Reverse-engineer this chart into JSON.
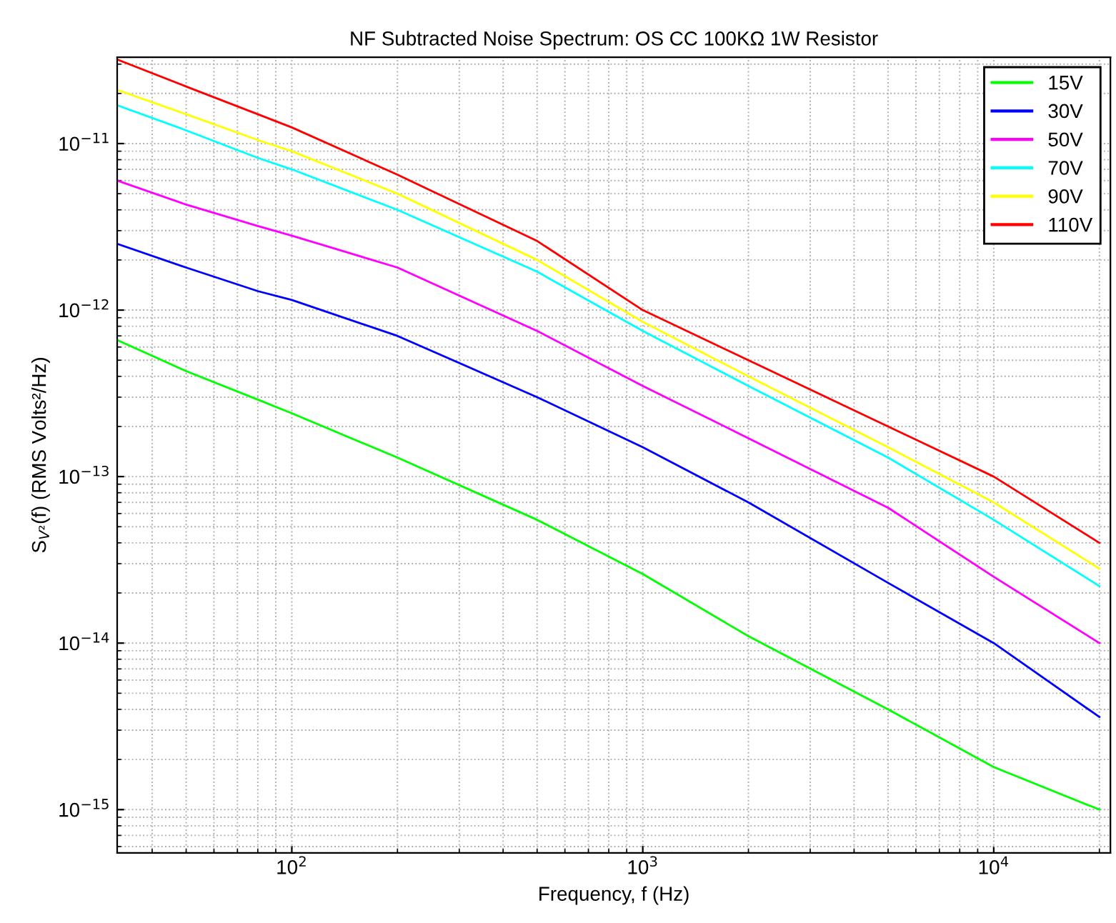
{
  "chart_data": {
    "type": "line",
    "title": "NF Subtracted Noise Spectrum: OS CC 100KΩ 1W Resistor",
    "xlabel": "Frequency, f (Hz)",
    "ylabel": "S$_{V²}$(f) (RMS Volts²/Hz)",
    "log": "xy",
    "grid": true,
    "legend": "top right",
    "line_style": "solid",
    "marker": "none",
    "xlim": [
      31.8,
      21500
    ],
    "ylim": [
      5.5e-16,
      3.3e-11
    ],
    "xticks": [
      {
        "value": 100,
        "label": "10$^{2}$"
      },
      {
        "value": 1000,
        "label": "10$^{3}$"
      },
      {
        "value": 10000,
        "label": "10$^{4}$"
      }
    ],
    "yticks": [
      {
        "value": 1e-15,
        "label": "10$^{−15}$"
      },
      {
        "value": 1e-14,
        "label": "10$^{−14}$"
      },
      {
        "value": 1e-13,
        "label": "10$^{−13}$"
      },
      {
        "value": 1e-12,
        "label": "10$^{−12}$"
      },
      {
        "value": 1e-11,
        "label": "10$^{−11}$"
      }
    ],
    "x": [
      31.8,
      50,
      80,
      100,
      200,
      500,
      1000,
      2000,
      5000,
      10000,
      20000
    ],
    "series": [
      {
        "name": "15V",
        "color": "#00ff00",
        "values": [
          6.6e-13,
          4.3e-13,
          2.9e-13,
          2.4e-13,
          1.3e-13,
          5.5e-14,
          2.6e-14,
          1.1e-14,
          4e-15,
          1.8e-15,
          1e-15
        ]
      },
      {
        "name": "30V",
        "color": "#0000ff",
        "values": [
          2.5e-12,
          1.8e-12,
          1.3e-12,
          1.15e-12,
          7e-13,
          3e-13,
          1.5e-13,
          7e-14,
          2.3e-14,
          1e-14,
          3.6e-15
        ]
      },
      {
        "name": "50V",
        "color": "#ff00ff",
        "values": [
          6e-12,
          4.3e-12,
          3.2e-12,
          2.8e-12,
          1.8e-12,
          7.5e-13,
          3.5e-13,
          1.7e-13,
          6.5e-14,
          2.5e-14,
          1e-14
        ]
      },
      {
        "name": "70V",
        "color": "#00ffff",
        "values": [
          1.7e-11,
          1.2e-11,
          8.2e-12,
          7e-12,
          4e-12,
          1.7e-12,
          7.5e-13,
          3.5e-13,
          1.3e-13,
          5.5e-14,
          2.2e-14
        ]
      },
      {
        "name": "90V",
        "color": "#ffff00",
        "values": [
          2.1e-11,
          1.5e-11,
          1.05e-11,
          9e-12,
          5e-12,
          2e-12,
          8.5e-13,
          4e-13,
          1.5e-13,
          7e-14,
          2.8e-14
        ]
      },
      {
        "name": "110V",
        "color": "#ff0000",
        "values": [
          3.2e-11,
          2.2e-11,
          1.5e-11,
          1.25e-11,
          6.5e-12,
          2.6e-12,
          1e-12,
          5e-13,
          2e-13,
          1e-13,
          4e-14
        ]
      }
    ]
  }
}
